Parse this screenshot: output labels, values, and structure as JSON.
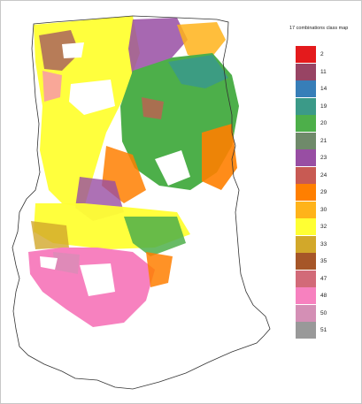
{
  "legend": {
    "title": "17 combinations class map",
    "classes": [
      {
        "label": "2",
        "color": "#e41a1c"
      },
      {
        "label": "11",
        "color": "#984464"
      },
      {
        "label": "14",
        "color": "#377eb8"
      },
      {
        "label": "19",
        "color": "#3b9a88"
      },
      {
        "label": "20",
        "color": "#4daf4a"
      },
      {
        "label": "21",
        "color": "#6f8a6a"
      },
      {
        "label": "23",
        "color": "#984ea3"
      },
      {
        "label": "24",
        "color": "#c85a53"
      },
      {
        "label": "29",
        "color": "#ff7f00"
      },
      {
        "label": "30",
        "color": "#ffb31a"
      },
      {
        "label": "32",
        "color": "#ffff33"
      },
      {
        "label": "33",
        "color": "#d2a82a"
      },
      {
        "label": "35",
        "color": "#a65628"
      },
      {
        "label": "47",
        "color": "#d26a78"
      },
      {
        "label": "48",
        "color": "#f781bf"
      },
      {
        "label": "50",
        "color": "#d48fb5"
      },
      {
        "label": "51",
        "color": "#999999"
      }
    ]
  }
}
